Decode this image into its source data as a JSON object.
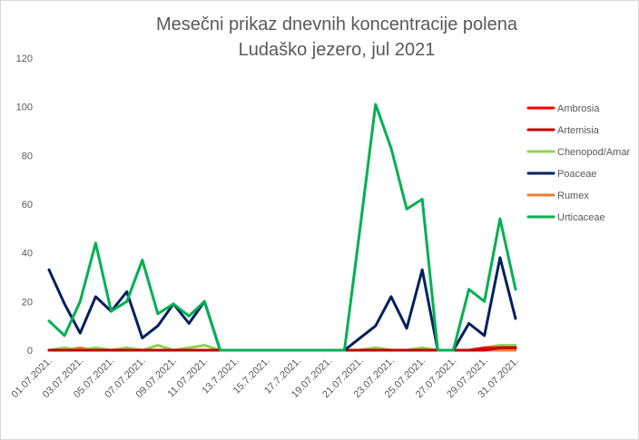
{
  "chart_data": {
    "type": "line",
    "title_line1": "Mesečni prikaz dnevnih koncentracije polena",
    "title_line2": "Ludaško jezero, jul 2021",
    "xlabel": "",
    "ylabel": "",
    "ylim": [
      0,
      120
    ],
    "yticks": [
      0,
      20,
      40,
      60,
      80,
      100,
      120
    ],
    "grid": false,
    "legend_position": "right",
    "categories": [
      "01.07.2021.",
      "02.07.2021.",
      "03.07.2021.",
      "04.07.2021.",
      "05.07.2021.",
      "06.07.2021.",
      "07.07.2021.",
      "08.07.2021.",
      "09.07.2021.",
      "10.07.2021.",
      "11.07.2021.",
      "12.07.2021.",
      "13.7.2021.",
      "14.7.2021.",
      "15.7.2021.",
      "16.7.2021.",
      "17.7.2021.",
      "18.7.2021.",
      "19.07.2021.",
      "20.07.2021.",
      "21.07.2021.",
      "22.07.2021.",
      "23.07.2021.",
      "24.07.2021.",
      "25.07.2021.",
      "26.07.2021.",
      "27.07.2021.",
      "28.07.2021.",
      "29.07.2021.",
      "30.07.2021.",
      "31.07.2021."
    ],
    "tick_labels": [
      "01.07.2021.",
      "03.07.2021.",
      "05.07.2021.",
      "07.07.2021.",
      "09.07.2021.",
      "11.07.2021.",
      "13.7.2021.",
      "15.7.2021.",
      "17.7.2021.",
      "19.07.2021.",
      "21.07.2021.",
      "23.07.2021.",
      "25.07.2021.",
      "27.07.2021.",
      "29.07.2021.",
      "31.07.2021."
    ],
    "series": [
      {
        "name": "Ambrosia",
        "color": "#ff0000",
        "values": [
          0,
          0,
          0,
          0,
          0,
          0,
          0,
          0,
          0,
          0,
          0,
          0,
          0,
          0,
          0,
          0,
          0,
          0,
          0,
          0,
          0,
          0,
          0,
          0,
          0,
          0,
          0,
          0,
          1,
          1,
          1
        ]
      },
      {
        "name": "Artemisia",
        "color": "#c00000",
        "values": [
          0,
          0,
          0,
          0,
          0,
          0,
          0,
          0,
          0,
          0,
          0,
          0,
          0,
          0,
          0,
          0,
          0,
          0,
          0,
          0,
          0,
          0,
          0,
          0,
          0,
          0,
          0,
          0,
          0,
          1,
          1
        ]
      },
      {
        "name": "Chenopod/Amar",
        "color": "#92d050",
        "values": [
          0,
          1,
          0,
          1,
          0,
          1,
          0,
          2,
          0,
          1,
          2,
          0,
          0,
          0,
          0,
          0,
          0,
          0,
          0,
          0,
          0,
          1,
          0,
          0,
          1,
          0,
          0,
          0,
          1,
          2,
          2
        ]
      },
      {
        "name": "Poaceae",
        "color": "#002060",
        "values": [
          33,
          19,
          7,
          22,
          16,
          24,
          5,
          10,
          19,
          11,
          20,
          0,
          0,
          0,
          0,
          0,
          0,
          0,
          0,
          0,
          5,
          10,
          22,
          9,
          33,
          0,
          0,
          11,
          6,
          38,
          13
        ]
      },
      {
        "name": "Rumex",
        "color": "#ed7d31",
        "values": [
          0,
          0,
          1,
          0,
          0,
          0,
          0,
          0,
          0,
          0,
          0,
          0,
          0,
          0,
          0,
          0,
          0,
          0,
          0,
          0,
          0,
          1,
          0,
          0,
          0,
          0,
          0,
          0,
          0,
          0,
          0
        ]
      },
      {
        "name": "Urticaceae",
        "color": "#00b050",
        "values": [
          12,
          6,
          20,
          44,
          16,
          20,
          37,
          15,
          19,
          14,
          20,
          0,
          0,
          0,
          0,
          0,
          0,
          0,
          0,
          0,
          50,
          101,
          83,
          58,
          62,
          0,
          0,
          25,
          20,
          54,
          25
        ]
      }
    ]
  }
}
